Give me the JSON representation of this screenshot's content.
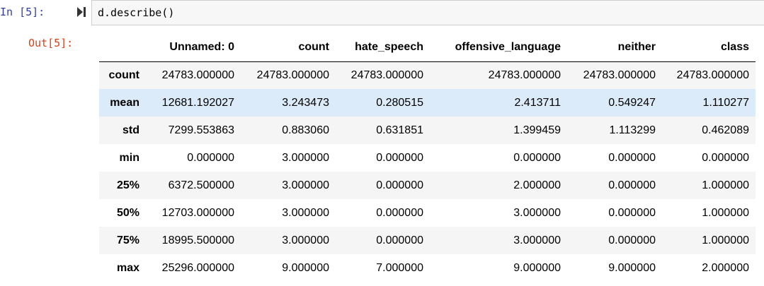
{
  "cell": {
    "in_prompt": "In [5]:",
    "run_icon": "run-cell-icon",
    "code": "d.describe()",
    "out_prompt": "Out[5]:"
  },
  "table": {
    "index_header": "",
    "columns": [
      "Unnamed: 0",
      "count",
      "hate_speech",
      "offensive_language",
      "neither",
      "class"
    ],
    "rows": [
      {
        "label": "count",
        "values": [
          "24783.000000",
          "24783.000000",
          "24783.000000",
          "24783.000000",
          "24783.000000",
          "24783.000000"
        ]
      },
      {
        "label": "mean",
        "values": [
          "12681.192027",
          "3.243473",
          "0.280515",
          "2.413711",
          "0.549247",
          "1.110277"
        ]
      },
      {
        "label": "std",
        "values": [
          "7299.553863",
          "0.883060",
          "0.631851",
          "1.399459",
          "1.113299",
          "0.462089"
        ]
      },
      {
        "label": "min",
        "values": [
          "0.000000",
          "3.000000",
          "0.000000",
          "0.000000",
          "0.000000",
          "0.000000"
        ]
      },
      {
        "label": "25%",
        "values": [
          "6372.500000",
          "3.000000",
          "0.000000",
          "2.000000",
          "0.000000",
          "1.000000"
        ]
      },
      {
        "label": "50%",
        "values": [
          "12703.000000",
          "3.000000",
          "0.000000",
          "3.000000",
          "0.000000",
          "1.000000"
        ]
      },
      {
        "label": "75%",
        "values": [
          "18995.500000",
          "3.000000",
          "0.000000",
          "3.000000",
          "0.000000",
          "1.000000"
        ]
      },
      {
        "label": "max",
        "values": [
          "25296.000000",
          "9.000000",
          "7.000000",
          "9.000000",
          "9.000000",
          "2.000000"
        ]
      }
    ],
    "hovered_row": "mean"
  },
  "colors": {
    "in_prompt": "#303f9f",
    "out_prompt": "#d84315",
    "code_bg": "#f7f7f7",
    "stripe": "#f5f5f5",
    "hover": "#dcebf9"
  }
}
